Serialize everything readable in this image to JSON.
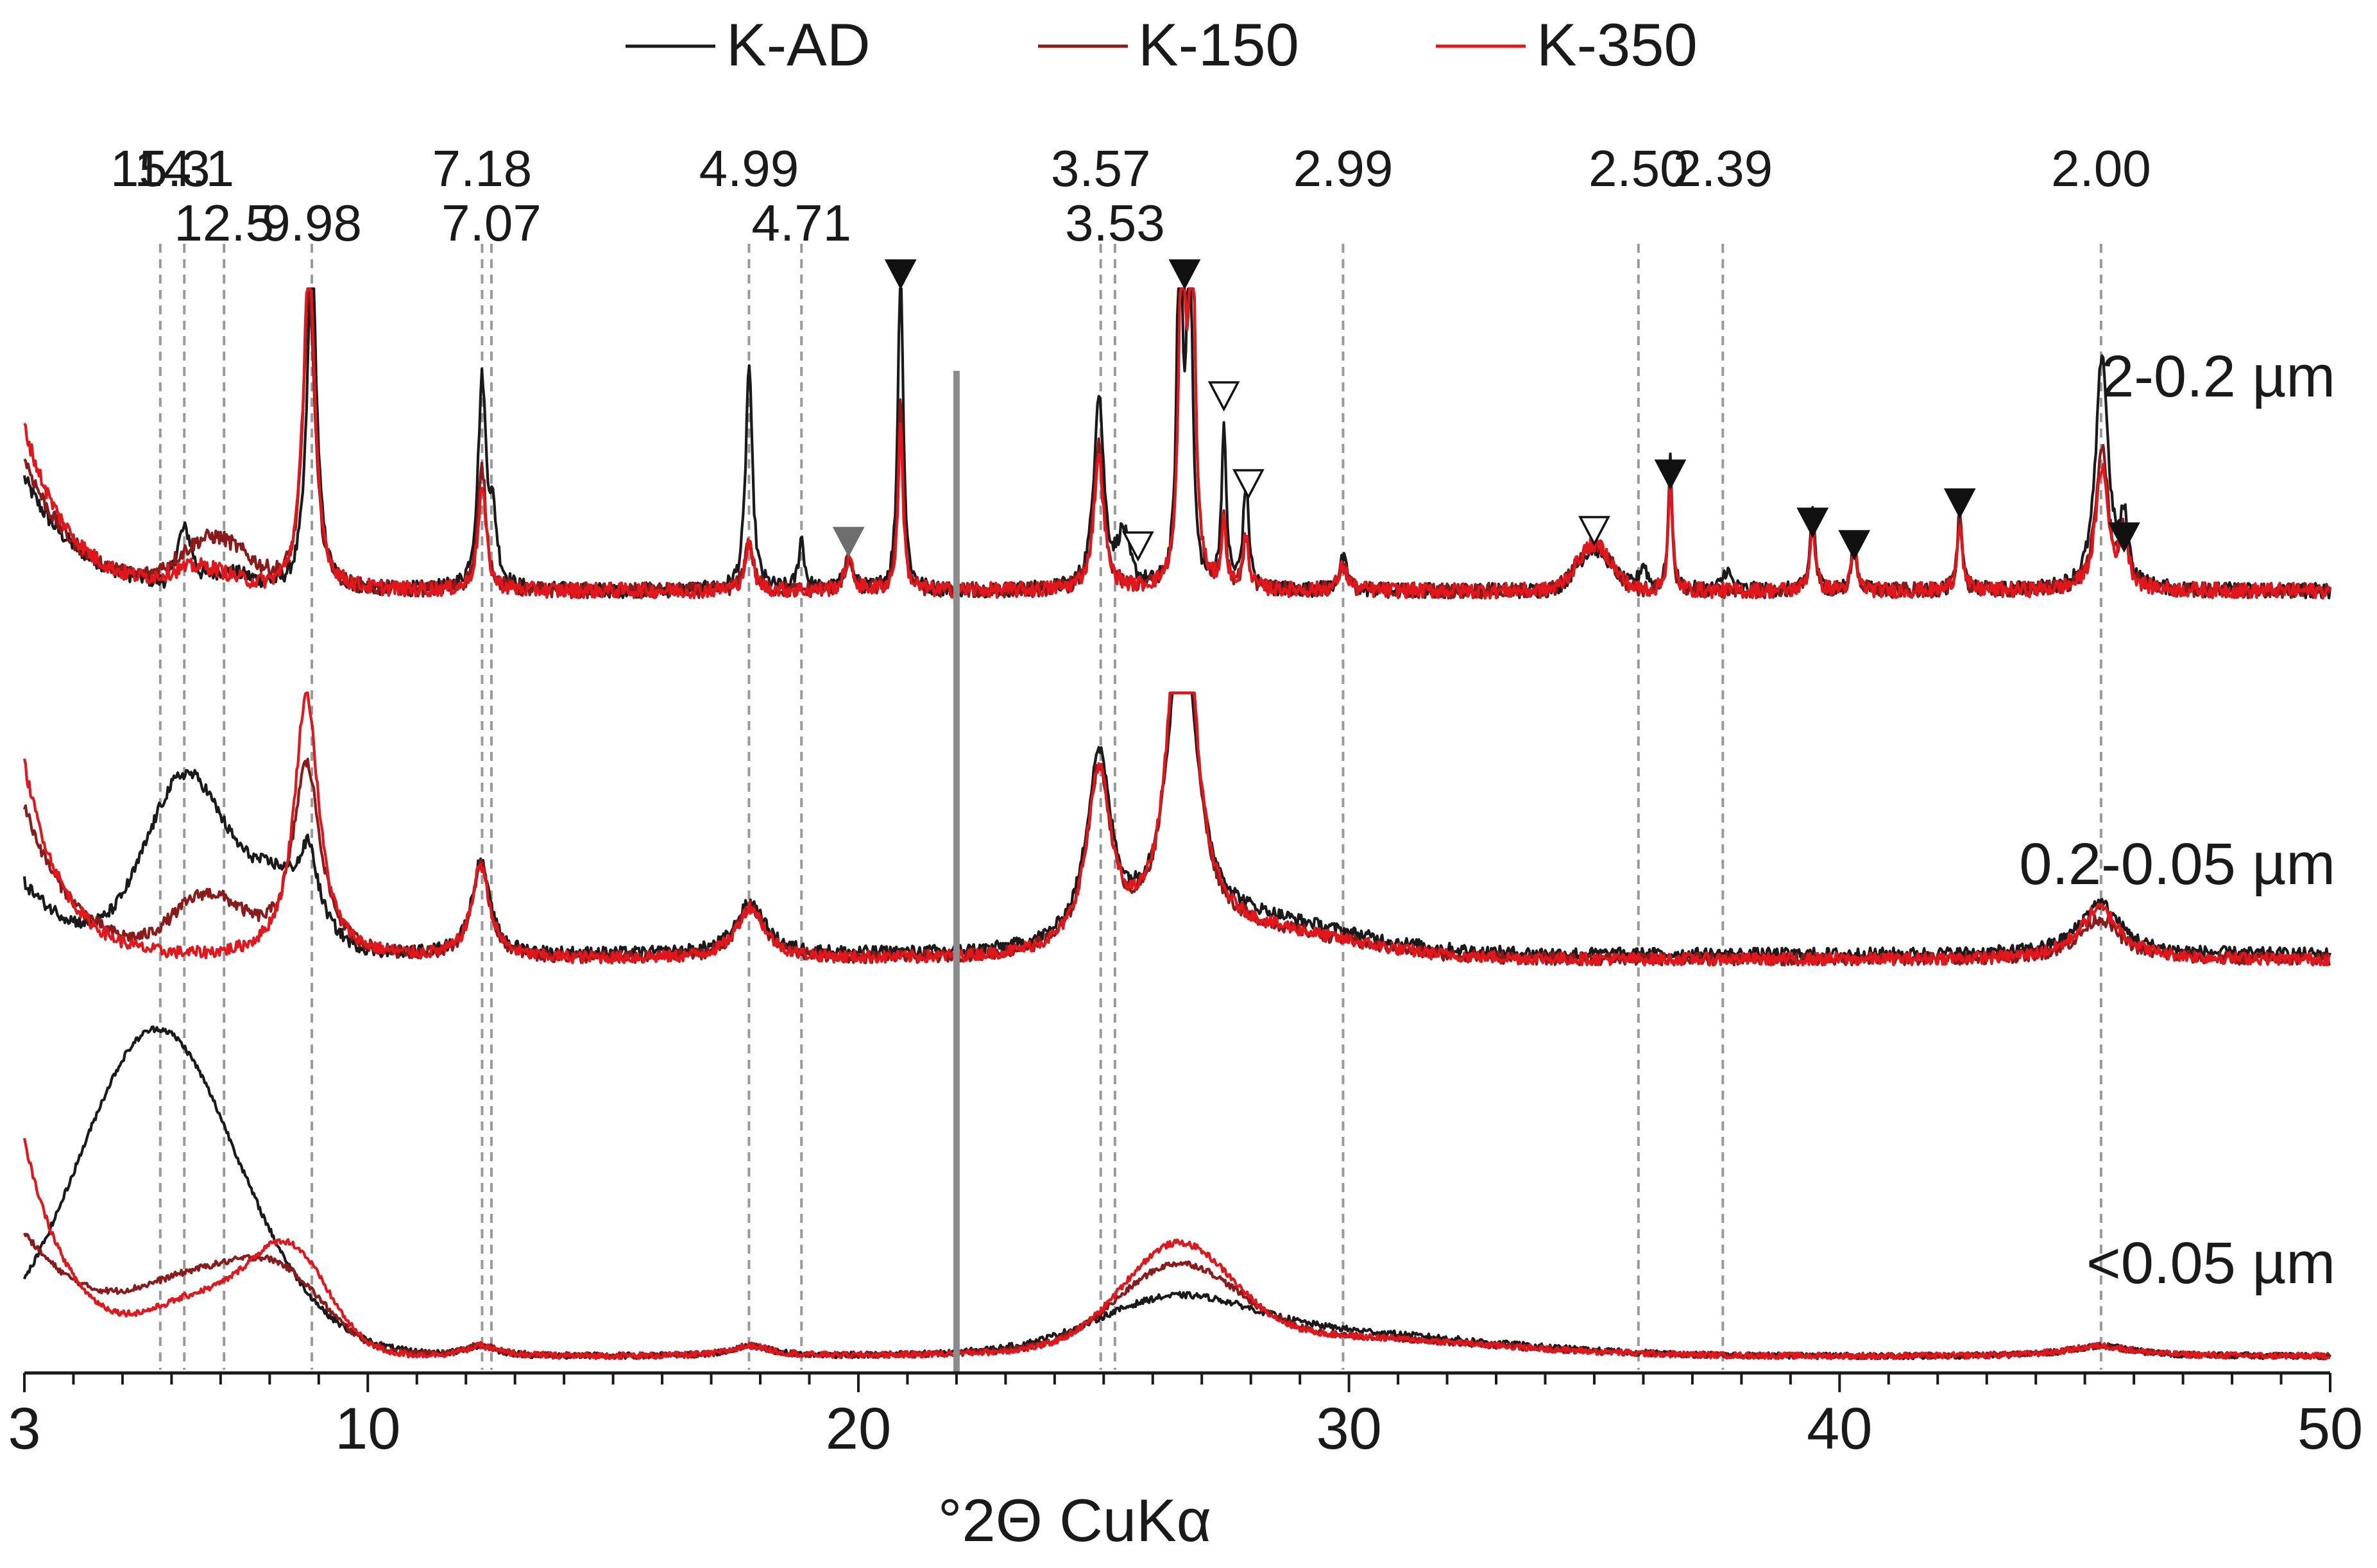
{
  "chart_data": {
    "type": "line",
    "title": "",
    "xlabel": "°2Θ CuKα",
    "ylabel": "",
    "xlim": [
      3,
      50
    ],
    "x_ticks": [
      {
        "value": 3,
        "label": "3"
      },
      {
        "value": 10,
        "label": "10"
      },
      {
        "value": 20,
        "label": "20"
      },
      {
        "value": 30,
        "label": "30"
      },
      {
        "value": 40,
        "label": "40"
      },
      {
        "value": 50,
        "label": "50"
      }
    ],
    "axis_break_at": 22,
    "legend": [
      {
        "name": "K-AD",
        "color": "#1a1a1a"
      },
      {
        "name": "K-150",
        "color": "#8b1a1a"
      },
      {
        "name": "K-350",
        "color": "#e3161b"
      }
    ],
    "reference_lines": [
      {
        "label": "15.3",
        "x": 5.77,
        "row": 1
      },
      {
        "label": "14.1",
        "x": 6.26,
        "row": 1
      },
      {
        "label": "12.5",
        "x": 7.07,
        "row": 2
      },
      {
        "label": "9.98",
        "x": 8.86,
        "row": 2
      },
      {
        "label": "7.18",
        "x": 12.33,
        "row": 1
      },
      {
        "label": "7.07",
        "x": 12.52,
        "row": 2
      },
      {
        "label": "4.99",
        "x": 17.77,
        "row": 1
      },
      {
        "label": "4.71",
        "x": 18.84,
        "row": 2
      },
      {
        "label": "3.57",
        "x": 24.94,
        "row": 1
      },
      {
        "label": "3.53",
        "x": 25.23,
        "row": 2
      },
      {
        "label": "2.99",
        "x": 29.88,
        "row": 1
      },
      {
        "label": "2.50",
        "x": 35.9,
        "row": 1
      },
      {
        "label": "2.39",
        "x": 37.62,
        "row": 1
      },
      {
        "label": "2.00",
        "x": 45.33,
        "row": 1
      }
    ],
    "panels": [
      {
        "label": "2-0.2 µm",
        "baseline_rel": 0.02
      },
      {
        "label": "0.2-0.05 µm",
        "baseline_rel": 0.02
      },
      {
        "label": "<0.05 µm",
        "baseline_rel": 0.02
      }
    ],
    "markers": [
      {
        "x": 19.8,
        "panel": 0,
        "kind": "filled-gray"
      },
      {
        "x": 20.86,
        "panel": 0,
        "kind": "filled"
      },
      {
        "x": 26.65,
        "panel": 0,
        "kind": "filled"
      },
      {
        "x": 25.7,
        "panel": 0,
        "kind": "open"
      },
      {
        "x": 27.45,
        "panel": 0,
        "kind": "open"
      },
      {
        "x": 27.95,
        "panel": 0,
        "kind": "open"
      },
      {
        "x": 35.0,
        "panel": 0,
        "kind": "open"
      },
      {
        "x": 36.55,
        "panel": 0,
        "kind": "filled"
      },
      {
        "x": 39.45,
        "panel": 0,
        "kind": "filled"
      },
      {
        "x": 40.3,
        "panel": 0,
        "kind": "filled"
      },
      {
        "x": 42.45,
        "panel": 0,
        "kind": "filled"
      },
      {
        "x": 45.8,
        "panel": 0,
        "kind": "filled"
      }
    ]
  }
}
